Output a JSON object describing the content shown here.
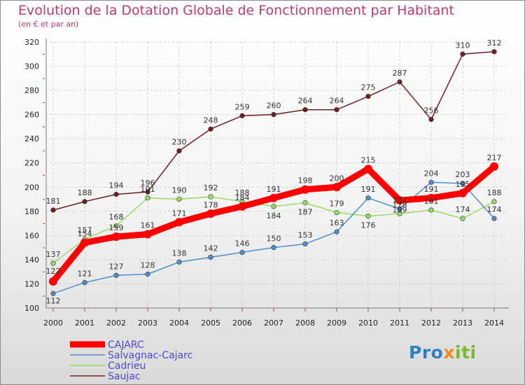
{
  "title": "Evolution de la Dotation Globale de Fonctionnement par Habitant",
  "subtitle": "(en € et par an)",
  "logo": {
    "text": "Proxiti",
    "colors": [
      "#2f7fc2",
      "#f08a1c",
      "#7ab82c"
    ]
  },
  "chart_data": {
    "type": "line",
    "x": [
      "2000",
      "2001",
      "2002",
      "2003",
      "2004",
      "2005",
      "2006",
      "2007",
      "2008",
      "2009",
      "2010",
      "2011",
      "2012",
      "2013",
      "2014"
    ],
    "ylim": [
      100,
      320
    ],
    "yticks": [
      100,
      120,
      140,
      160,
      180,
      200,
      220,
      240,
      260,
      280,
      300,
      320
    ],
    "grid": true,
    "legend_position": "bottom-left",
    "series": [
      {
        "name": "Saujac",
        "color": "#6e1e27",
        "values": [
          181,
          188,
          194,
          196,
          230,
          248,
          259,
          260,
          264,
          264,
          275,
          287,
          256,
          310,
          312
        ]
      },
      {
        "name": "Cadrieu",
        "color": "#96db64",
        "values": [
          137,
          157,
          168,
          191,
          190,
          192,
          188,
          184,
          187,
          179,
          176,
          178,
          181,
          174,
          188
        ]
      },
      {
        "name": "Salvagnac-Cajarc",
        "color": "#4f8fc8",
        "values": [
          112,
          121,
          127,
          128,
          138,
          142,
          146,
          150,
          153,
          163,
          191,
          182,
          204,
          203,
          174
        ]
      },
      {
        "name": "CAJARC",
        "color": "#ff0000",
        "values": [
          122,
          154,
          159,
          161,
          171,
          178,
          184,
          191,
          198,
          200,
          215,
          189,
          191,
          195,
          217
        ]
      }
    ],
    "legend_order": [
      "CAJARC",
      "Salvagnac-Cajarc",
      "Cadrieu",
      "Saujac"
    ]
  }
}
